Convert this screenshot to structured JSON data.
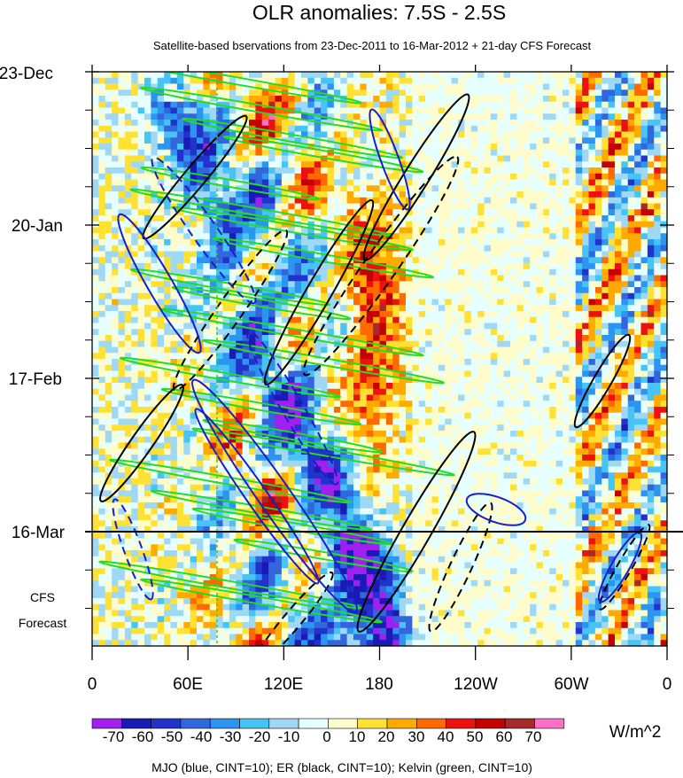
{
  "chart_data": {
    "type": "heatmap",
    "title": "OLR anomalies: 7.5S - 2.5S",
    "subtitle": "Satellite-based bservations from 23-Dec-2011 to 16-Mar-2012 + 21-day CFS Forecast",
    "x_ticks": [
      "0",
      "60E",
      "120E",
      "180",
      "120W",
      "60W",
      "0"
    ],
    "y_ticks": [
      "23-Dec",
      "20-Jan",
      "17-Feb",
      "16-Mar"
    ],
    "forecast_label": [
      "CFS",
      "Forecast"
    ],
    "observation_end": "16-Mar",
    "colorbar": {
      "labels": [
        "-70",
        "-60",
        "-50",
        "-40",
        "-30",
        "-20",
        "-10",
        "0",
        "10",
        "20",
        "30",
        "40",
        "50",
        "60",
        "70"
      ],
      "colors": [
        "#a020f0",
        "#1a1ab4",
        "#2233cc",
        "#3366dd",
        "#2b95f0",
        "#47c4f5",
        "#9fd8f5",
        "#e6ffff",
        "#fffccc",
        "#ffe133",
        "#ffaa00",
        "#ff6a00",
        "#ee1111",
        "#c40000",
        "#a52a2a",
        "#ff6ec7"
      ],
      "units": "W/m^2"
    },
    "footer": "MJO (blue, CINT=10); ER (black, CINT=10); Kelvin (green, CINT=10)",
    "series_colors": {
      "MJO": "#1c1cc8",
      "ER": "#000000",
      "Kelvin": "#22dd22"
    }
  }
}
